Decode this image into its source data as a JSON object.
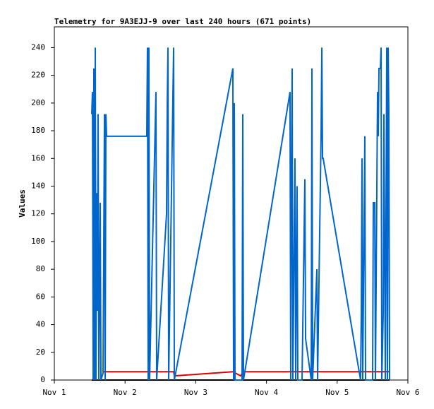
{
  "chart_data": {
    "type": "line",
    "title": "Telemetry for 9A3EJJ-9 over last 240 hours (671 points)",
    "y_label": "Values",
    "xlim": [
      1,
      6
    ],
    "xticks": [
      {
        "value": 1,
        "label": "Nov 1"
      },
      {
        "value": 2,
        "label": "Nov 2"
      },
      {
        "value": 3,
        "label": "Nov 3"
      },
      {
        "value": 4,
        "label": "Nov 4"
      },
      {
        "value": 5,
        "label": "Nov 5"
      },
      {
        "value": 6,
        "label": "Nov 6"
      }
    ],
    "ylim": [
      0,
      255
    ],
    "yticks": [
      0,
      20,
      40,
      60,
      80,
      100,
      120,
      140,
      160,
      180,
      200,
      220,
      240
    ],
    "grid": false,
    "series": [
      {
        "color": "#0066cc",
        "x": [
          1.529,
          1.539,
          1.549,
          1.559,
          1.569,
          1.579,
          1.589,
          1.599,
          1.609,
          1.619,
          1.629,
          1.649,
          1.659,
          1.689,
          1.709,
          1.719,
          1.729,
          1.739,
          2.307,
          2.317,
          2.327,
          2.337,
          2.347,
          2.437,
          2.447,
          2.587,
          2.597,
          2.607,
          2.617,
          2.687,
          2.697,
          3.525,
          3.535,
          3.545,
          3.555,
          3.655,
          3.665,
          3.675,
          4.333,
          4.343,
          4.353,
          4.363,
          4.373,
          4.403,
          4.413,
          4.433,
          4.443,
          4.503,
          4.543,
          4.553,
          4.633,
          4.643,
          4.653,
          4.713,
          4.723,
          4.773,
          4.783,
          4.793,
          4.802,
          5.331,
          5.341,
          5.351,
          5.361,
          5.391,
          5.401,
          5.501,
          5.511,
          5.531,
          5.541,
          5.571,
          5.581,
          5.591,
          5.611,
          5.621,
          5.631,
          5.651,
          5.661,
          5.681,
          5.701,
          5.711,
          5.721,
          5.731,
          5.741
        ],
        "values": [
          192,
          208,
          0,
          225,
          0,
          240,
          0,
          135,
          50,
          192,
          0,
          128,
          0,
          5,
          192,
          0,
          192,
          176,
          176,
          240,
          0,
          240,
          0,
          208,
          0,
          120,
          200,
          240,
          0,
          240,
          0,
          225,
          0,
          200,
          0,
          0,
          192,
          0,
          208,
          0,
          140,
          225,
          0,
          160,
          0,
          140,
          0,
          0,
          145,
          30,
          0,
          225,
          0,
          80,
          0,
          180,
          240,
          160,
          160,
          0,
          48,
          160,
          0,
          176,
          0,
          0,
          128,
          128,
          0,
          208,
          176,
          225,
          225,
          240,
          0,
          48,
          192,
          0,
          240,
          0,
          240,
          192,
          0
        ]
      },
      {
        "color": "#dd0000",
        "x": [
          1.689,
          2.687,
          2.697,
          3.525,
          3.635,
          3.675,
          5.741
        ],
        "values": [
          6,
          6,
          3,
          6,
          3,
          6,
          6
        ]
      },
      {
        "color": "#000000",
        "x": [
          1.529,
          5.741
        ],
        "values": [
          0,
          0
        ]
      }
    ]
  }
}
